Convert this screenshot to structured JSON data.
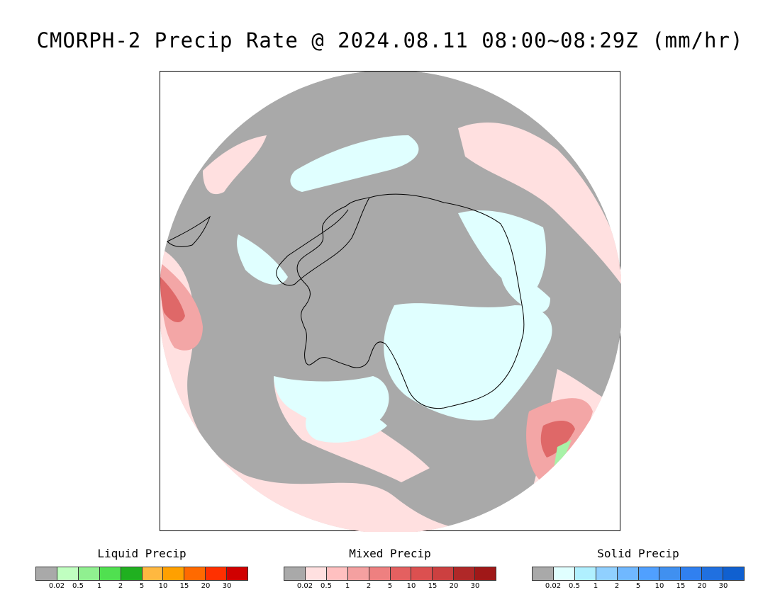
{
  "title": "CMORPH-2 Precip Rate @ 2024.08.11 08:00~08:29Z (mm/hr)",
  "map": {
    "projection": "south-polar-stereographic",
    "region": "Antarctica",
    "colors": {
      "no_precip": "#a9a9a9",
      "mixed_light": "#ffe0e0",
      "mixed_medium": "#f3a6a6",
      "mixed_heavy": "#df6868",
      "solid_light": "#e0ffff",
      "liquid_light": "#a8f2a8",
      "coastline": "#000000"
    }
  },
  "legends": [
    {
      "title": "Liquid Precip",
      "colors": [
        "#a9a9a9",
        "#c0ffc0",
        "#90f090",
        "#50e050",
        "#20b020",
        "#ffb840",
        "#ffa000",
        "#ff6a00",
        "#ff3000",
        "#d00000"
      ],
      "ticks": [
        "0.02",
        "0.5",
        "1",
        "2",
        "5",
        "10",
        "15",
        "20",
        "30"
      ]
    },
    {
      "title": "Mixed Precip",
      "colors": [
        "#a9a9a9",
        "#ffe0e0",
        "#ffc0c0",
        "#f4a0a0",
        "#ee8080",
        "#e46060",
        "#dc5050",
        "#cc4040",
        "#b02828",
        "#a01818"
      ],
      "ticks": [
        "0.02",
        "0.5",
        "1",
        "2",
        "5",
        "10",
        "15",
        "20",
        "30"
      ]
    },
    {
      "title": "Solid Precip",
      "colors": [
        "#a9a9a9",
        "#e0ffff",
        "#b0f0ff",
        "#90d0ff",
        "#70b8ff",
        "#50a0ff",
        "#4090f0",
        "#3080f0",
        "#2070e0",
        "#1060d0"
      ],
      "ticks": [
        "0.02",
        "0.5",
        "1",
        "2",
        "5",
        "10",
        "15",
        "20",
        "30"
      ]
    }
  ]
}
